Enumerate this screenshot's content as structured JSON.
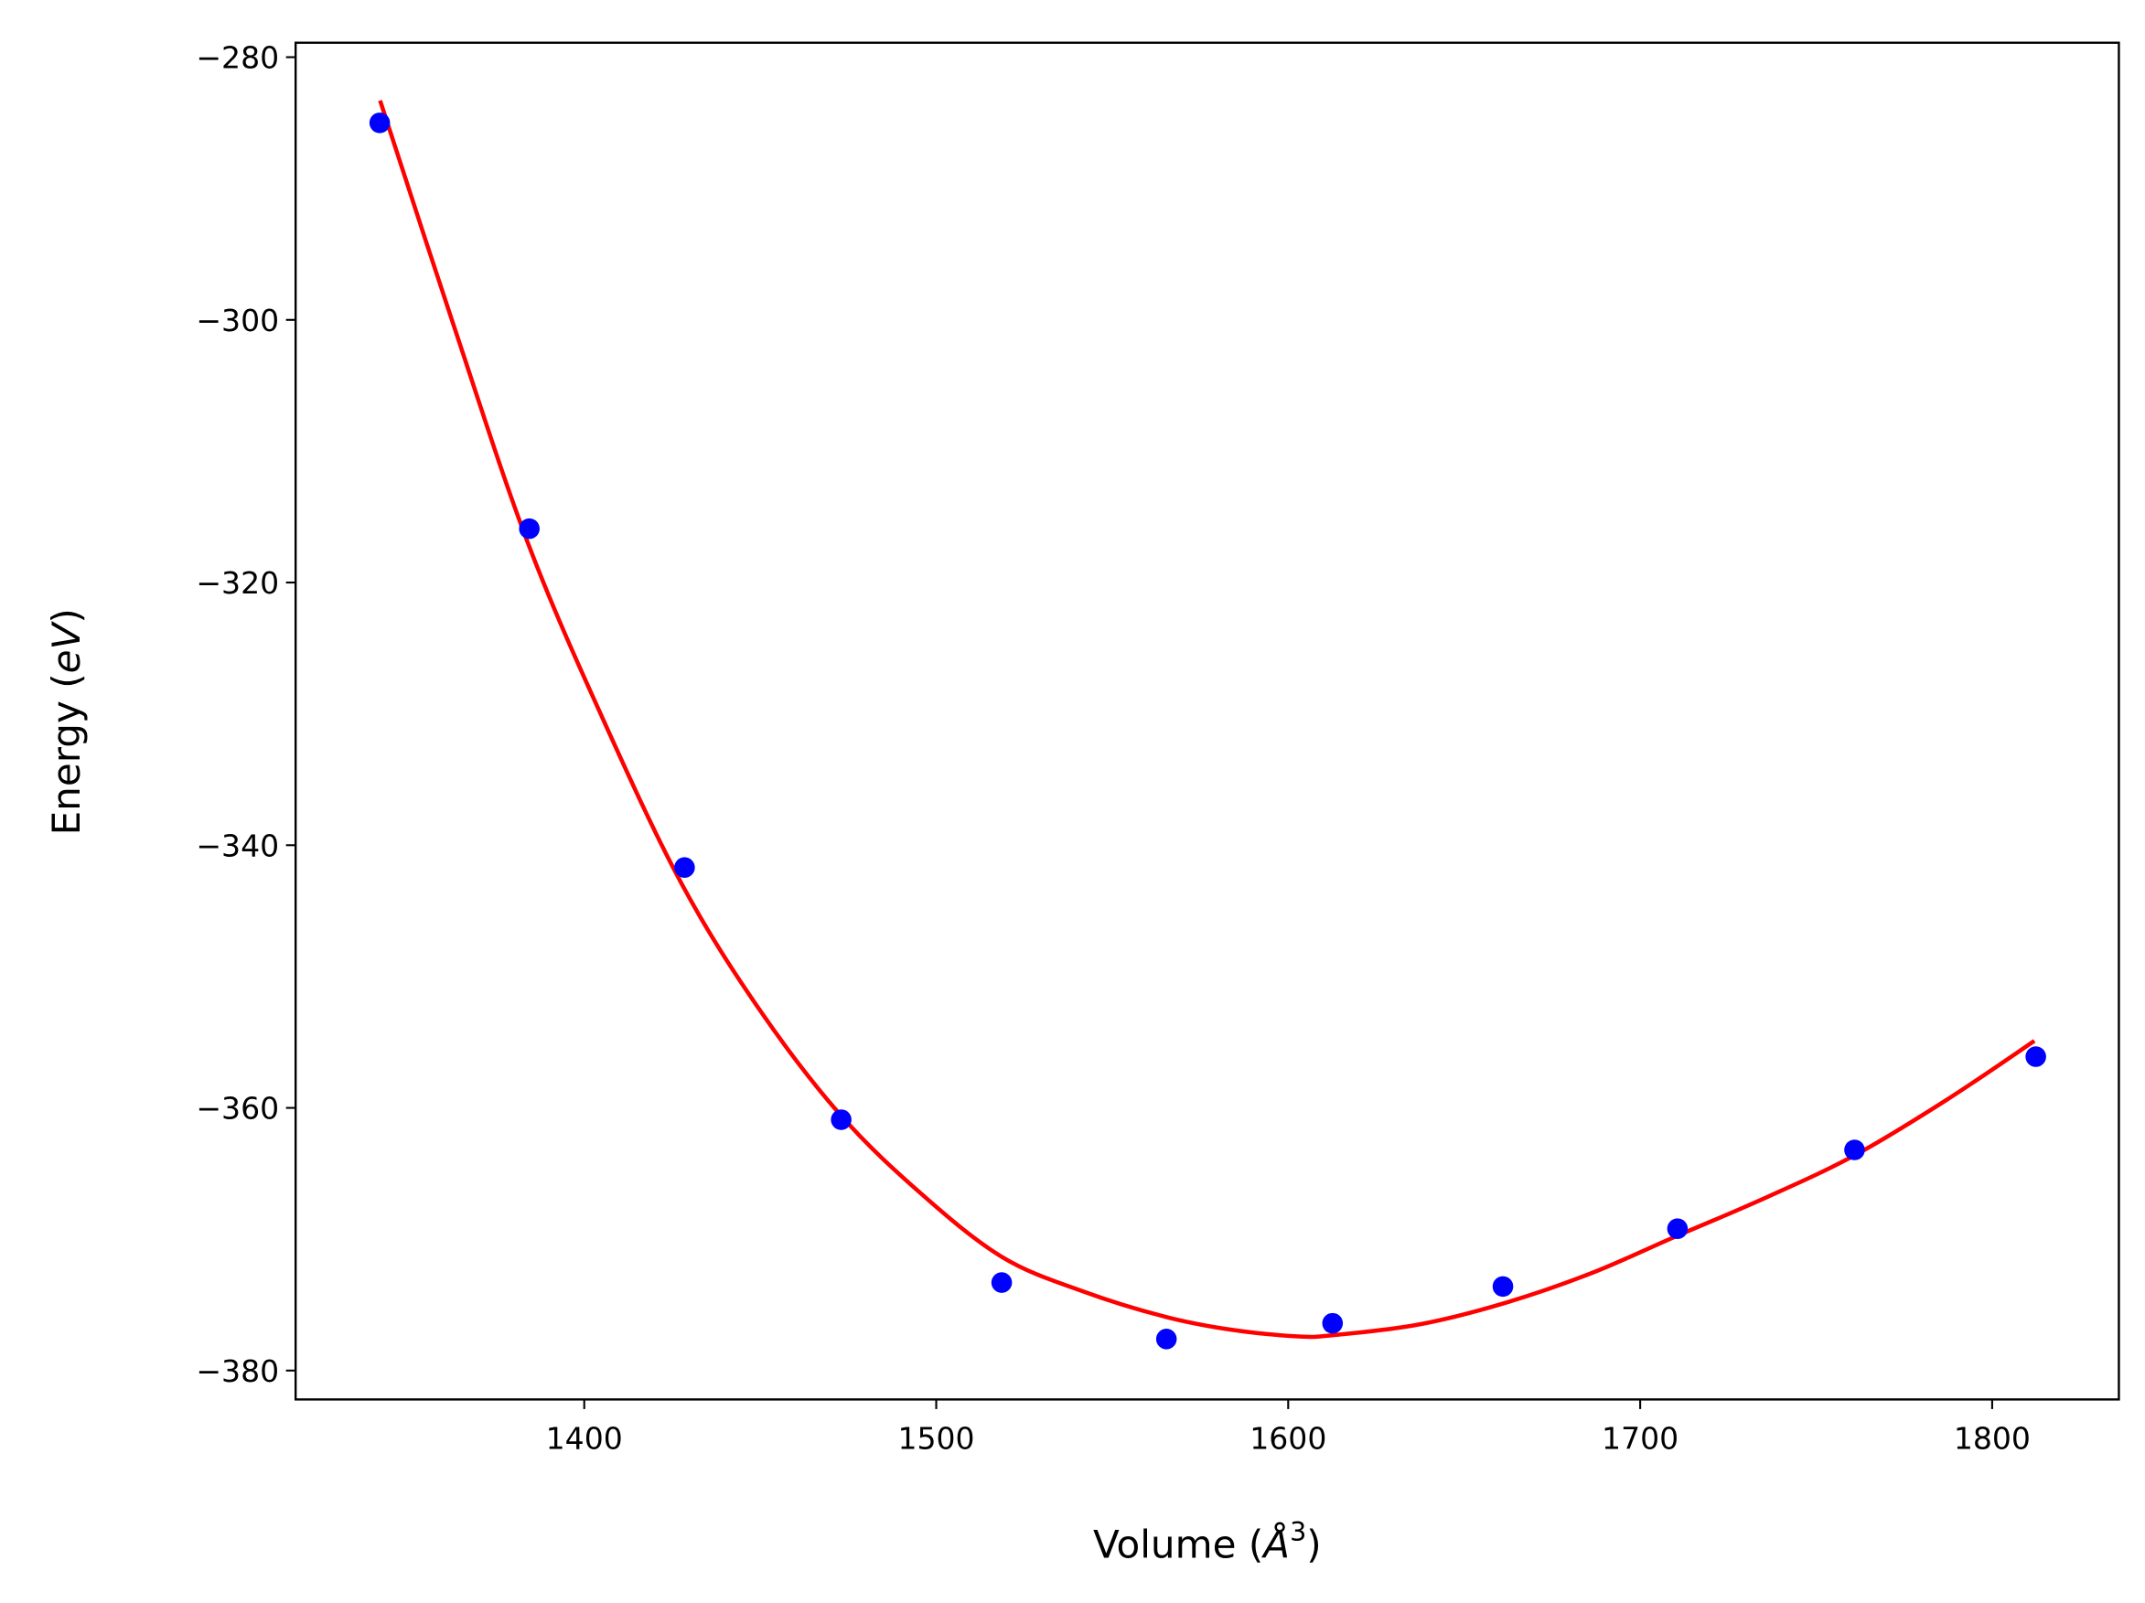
{
  "chart_data": {
    "type": "scatter",
    "title": "",
    "xlabel": "Volume (Å³)",
    "xlabel_parts": {
      "main": "Volume (",
      "unit": "Å",
      "sup": "3",
      "close": ")"
    },
    "ylabel": "Energy (eV)",
    "ylabel_parts": {
      "main": "Energy (",
      "unit": "eV",
      "close": ")"
    },
    "xlim": [
      1318,
      1836
    ],
    "ylim": [
      -382.2,
      -278.9
    ],
    "xticks": [
      1400,
      1500,
      1600,
      1700,
      1800
    ],
    "xtick_labels": [
      "1400",
      "1500",
      "1600",
      "1700",
      "1800"
    ],
    "yticks": [
      -280,
      -300,
      -320,
      -340,
      -360,
      -380
    ],
    "ytick_labels": [
      "−280",
      "−300",
      "−320",
      "−340",
      "−360",
      "−380"
    ],
    "grid": false,
    "series": [
      {
        "kind": "scatter",
        "color": "#0000ff",
        "x": [
          1341.9,
          1384.4,
          1428.5,
          1473.0,
          1518.6,
          1565.4,
          1612.6,
          1661.0,
          1710.6,
          1760.9,
          1812.4
        ],
        "y": [
          -285.0,
          -315.9,
          -341.7,
          -360.9,
          -373.3,
          -377.6,
          -376.4,
          -373.6,
          -369.2,
          -363.2,
          -356.1
        ]
      },
      {
        "kind": "line",
        "color": "#ff0000",
        "x": [
          1342,
          1363,
          1384,
          1406,
          1428,
          1450,
          1473,
          1496,
          1519,
          1542,
          1565,
          1584,
          1603,
          1613,
          1637,
          1661,
          1686,
          1710,
          1736,
          1761,
          1787,
          1812
        ],
        "y": [
          -283.3,
          -300.5,
          -317.0,
          -330.8,
          -343.1,
          -352.6,
          -360.6,
          -366.6,
          -371.4,
          -374.0,
          -375.9,
          -376.9,
          -377.4,
          -377.3,
          -376.5,
          -374.9,
          -372.6,
          -369.8,
          -366.8,
          -363.6,
          -359.4,
          -354.9
        ]
      }
    ]
  }
}
